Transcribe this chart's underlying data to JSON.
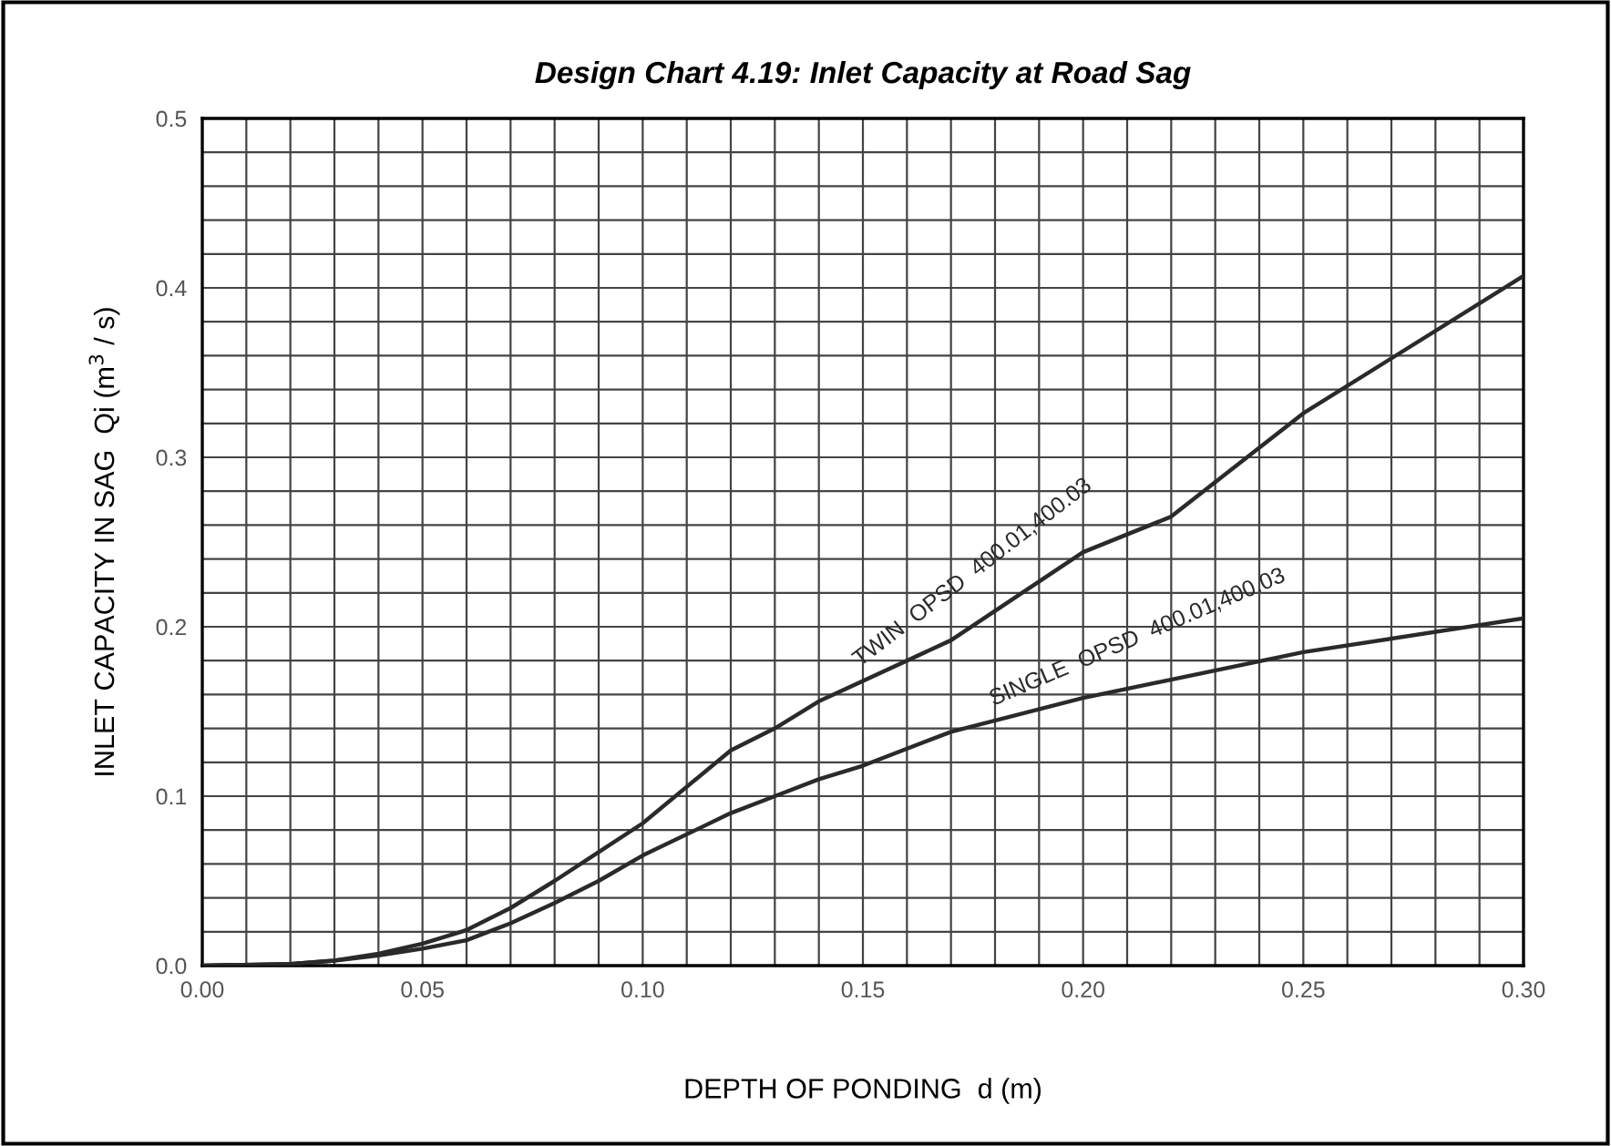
{
  "chart_data": {
    "type": "line",
    "title": "Design Chart 4.19: Inlet Capacity at Road Sag",
    "xlabel": "DEPTH OF PONDING  d (m)",
    "ylabel": "INLET CAPACITY IN SAG  Qi (m$^{3}$ / s)",
    "series": [
      {
        "name": "TWIN  OPSD  400.01,400.03",
        "color": "#2a2a2a",
        "x": [
          0.0,
          0.02,
          0.03,
          0.04,
          0.05,
          0.06,
          0.07,
          0.08,
          0.09,
          0.1,
          0.12,
          0.13,
          0.14,
          0.17,
          0.2,
          0.22,
          0.25,
          0.3
        ],
        "values": [
          0.0,
          0.001,
          0.003,
          0.007,
          0.013,
          0.021,
          0.034,
          0.05,
          0.067,
          0.084,
          0.127,
          0.14,
          0.156,
          0.192,
          0.244,
          0.265,
          0.326,
          0.407
        ]
      },
      {
        "name": "SINGLE  OPSD  400.01,400.03",
        "color": "#2a2a2a",
        "x": [
          0.0,
          0.02,
          0.03,
          0.04,
          0.05,
          0.06,
          0.07,
          0.08,
          0.09,
          0.1,
          0.12,
          0.13,
          0.14,
          0.15,
          0.17,
          0.2,
          0.25,
          0.3
        ],
        "values": [
          0.0,
          0.001,
          0.003,
          0.006,
          0.01,
          0.015,
          0.025,
          0.037,
          0.05,
          0.065,
          0.09,
          0.1,
          0.11,
          0.118,
          0.138,
          0.158,
          0.185,
          0.205
        ]
      }
    ],
    "xlim": [
      0,
      0.3
    ],
    "ylim": [
      0,
      0.5
    ],
    "xticks": [
      {
        "value": 0.0,
        "label": "0.00"
      },
      {
        "value": 0.01,
        "label": null
      },
      {
        "value": 0.02,
        "label": null
      },
      {
        "value": 0.03,
        "label": null
      },
      {
        "value": 0.04,
        "label": null
      },
      {
        "value": 0.05,
        "label": "0.05"
      },
      {
        "value": 0.06,
        "label": null
      },
      {
        "value": 0.07,
        "label": null
      },
      {
        "value": 0.08,
        "label": null
      },
      {
        "value": 0.09,
        "label": null
      },
      {
        "value": 0.1,
        "label": "0.10"
      },
      {
        "value": 0.11,
        "label": null
      },
      {
        "value": 0.12,
        "label": null
      },
      {
        "value": 0.13,
        "label": null
      },
      {
        "value": 0.14,
        "label": null
      },
      {
        "value": 0.15,
        "label": "0.15"
      },
      {
        "value": 0.16,
        "label": null
      },
      {
        "value": 0.17,
        "label": null
      },
      {
        "value": 0.18,
        "label": null
      },
      {
        "value": 0.19,
        "label": null
      },
      {
        "value": 0.2,
        "label": "0.20"
      },
      {
        "value": 0.21,
        "label": null
      },
      {
        "value": 0.22,
        "label": null
      },
      {
        "value": 0.23,
        "label": null
      },
      {
        "value": 0.24,
        "label": null
      },
      {
        "value": 0.25,
        "label": "0.25"
      },
      {
        "value": 0.26,
        "label": null
      },
      {
        "value": 0.27,
        "label": null
      },
      {
        "value": 0.28,
        "label": null
      },
      {
        "value": 0.29,
        "label": null
      },
      {
        "value": 0.3,
        "label": "0.30"
      }
    ],
    "yticks": [
      {
        "value": 0.0,
        "label": "0.0"
      },
      {
        "value": 0.02,
        "label": null
      },
      {
        "value": 0.04,
        "label": null
      },
      {
        "value": 0.06,
        "label": null
      },
      {
        "value": 0.08,
        "label": null
      },
      {
        "value": 0.1,
        "label": "0.1"
      },
      {
        "value": 0.12,
        "label": null
      },
      {
        "value": 0.14,
        "label": null
      },
      {
        "value": 0.16,
        "label": null
      },
      {
        "value": 0.18,
        "label": null
      },
      {
        "value": 0.2,
        "label": "0.2"
      },
      {
        "value": 0.22,
        "label": null
      },
      {
        "value": 0.24,
        "label": null
      },
      {
        "value": 0.26,
        "label": null
      },
      {
        "value": 0.28,
        "label": null
      },
      {
        "value": 0.3,
        "label": "0.3"
      },
      {
        "value": 0.32,
        "label": null
      },
      {
        "value": 0.34,
        "label": null
      },
      {
        "value": 0.36,
        "label": null
      },
      {
        "value": 0.38,
        "label": null
      },
      {
        "value": 0.4,
        "label": "0.4"
      },
      {
        "value": 0.42,
        "label": null
      },
      {
        "value": 0.44,
        "label": null
      },
      {
        "value": 0.46,
        "label": null
      },
      {
        "value": 0.48,
        "label": null
      },
      {
        "value": 0.5,
        "label": "0.5"
      }
    ],
    "grid": true,
    "marker": "none",
    "line_style": "solid",
    "legend": false
  }
}
